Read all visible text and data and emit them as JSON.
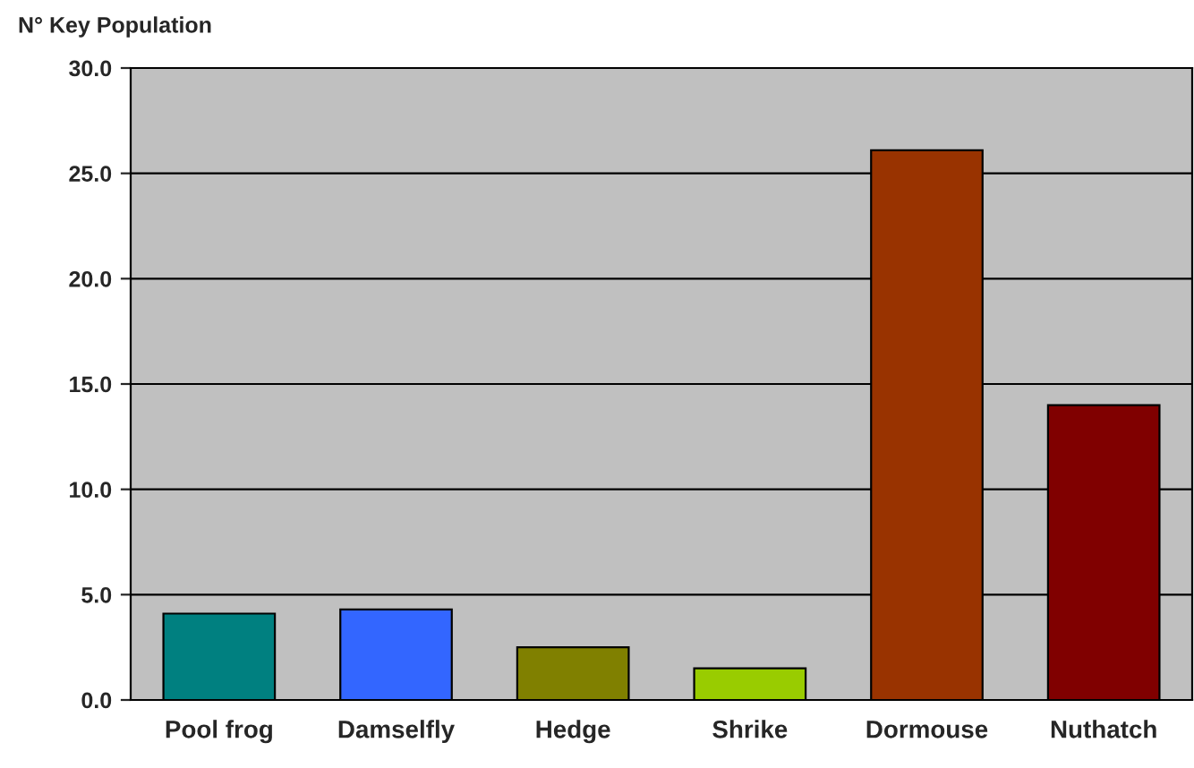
{
  "chart_data": {
    "type": "bar",
    "ylabel": "N° Key Population",
    "categories": [
      "Pool frog",
      "Damselfly",
      "Hedge",
      "Shrike",
      "Dormouse",
      "Nuthatch"
    ],
    "values": [
      4.1,
      4.3,
      2.5,
      1.5,
      26.1,
      14.0
    ],
    "colors": [
      "#008080",
      "#3366ff",
      "#808000",
      "#99cc00",
      "#993300",
      "#800000"
    ],
    "ylim": [
      0,
      30
    ],
    "yticks": [
      {
        "value": 0,
        "label": "0.0"
      },
      {
        "value": 5,
        "label": "5.0"
      },
      {
        "value": 10,
        "label": "10.0"
      },
      {
        "value": 15,
        "label": "15.0"
      },
      {
        "value": 20,
        "label": "20.0"
      },
      {
        "value": 25,
        "label": "25.0"
      },
      {
        "value": 30,
        "label": "30.0"
      }
    ],
    "grid": "y",
    "legend": false
  }
}
